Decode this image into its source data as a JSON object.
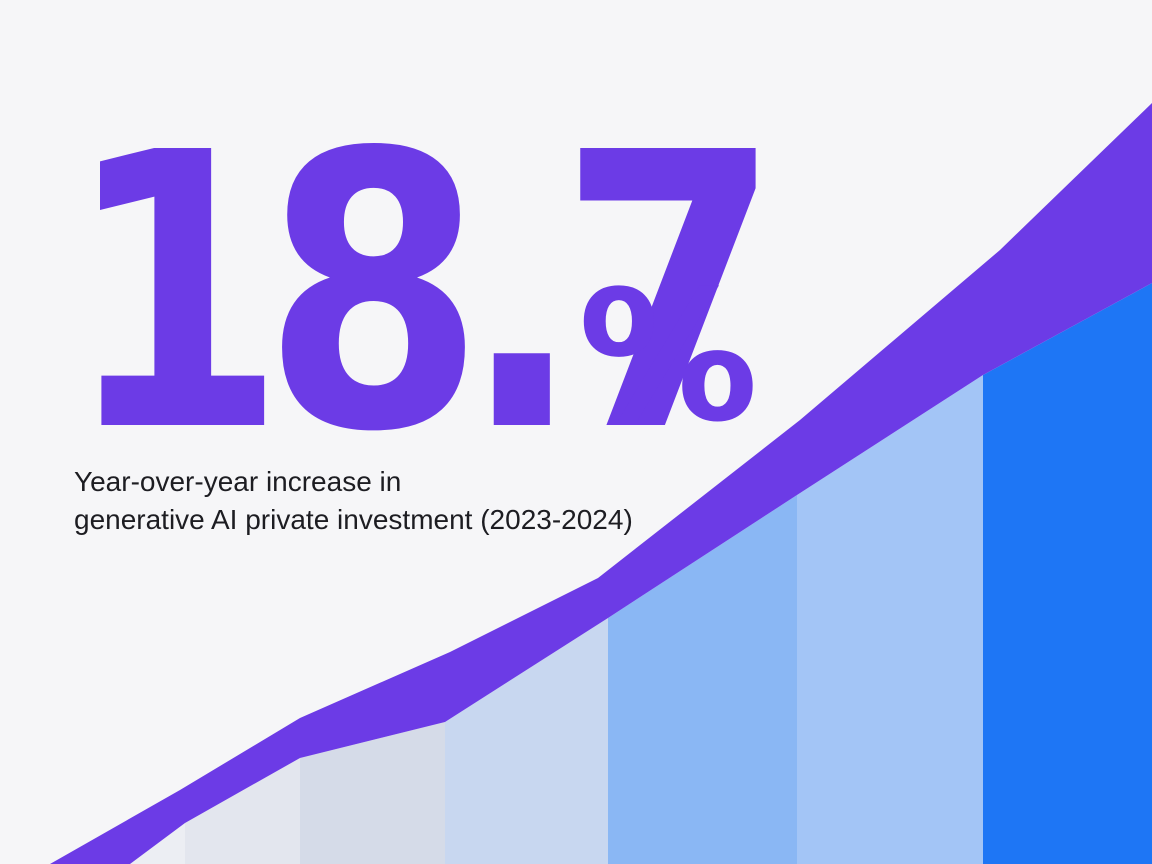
{
  "stat": {
    "number": "18.7",
    "symbol": "%"
  },
  "caption": {
    "line1": "Year-over-year increase in",
    "line2": "generative AI private investment (2023-2024)"
  },
  "colors": {
    "background": "#f6f6f8",
    "accent_purple": "#6c3be6",
    "accent_blue": "#1e76f5",
    "text": "#1d1d22"
  }
}
